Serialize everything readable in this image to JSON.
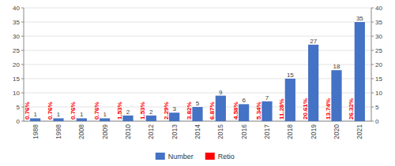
{
  "chart_data": {
    "type": "bar",
    "categories": [
      "1988",
      "1998",
      "2008",
      "2009",
      "2010",
      "2012",
      "2013",
      "2014",
      "2015",
      "2016",
      "2017",
      "2018",
      "2019",
      "2020",
      "2021"
    ],
    "series": [
      {
        "name": "Number",
        "type": "bar",
        "color": "#4472C4",
        "values": [
          1,
          1,
          1,
          1,
          2,
          2,
          3,
          5,
          9,
          6,
          7,
          15,
          27,
          18,
          35
        ]
      },
      {
        "name": "Retio",
        "type": "label",
        "color": "#FF0000",
        "values": [
          0.76,
          0.76,
          0.76,
          0.76,
          1.53,
          1.53,
          2.29,
          3.82,
          6.87,
          4.58,
          5.34,
          11.28,
          20.61,
          13.74,
          26.32
        ],
        "value_labels": [
          "0.76%",
          "0.76%",
          "0.76%",
          "0.76%",
          "1.53%",
          "1.53%",
          "2.29%",
          "3.82%",
          "6.87%",
          "4.58%",
          "5.34%",
          "11.28%",
          "20.61%",
          "13.74%",
          "26.32%"
        ]
      }
    ],
    "ylim": [
      0,
      40
    ],
    "yticks": [
      0,
      5,
      10,
      15,
      20,
      25,
      30,
      35,
      40
    ],
    "y2lim": [
      0,
      40
    ],
    "y2ticks": [
      0,
      5,
      10,
      15,
      20,
      25,
      30,
      35,
      40
    ],
    "grid": true,
    "data_labels": true,
    "legend": "bottom"
  }
}
